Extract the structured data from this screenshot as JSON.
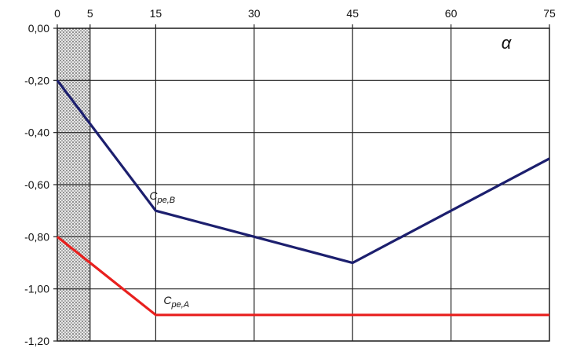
{
  "chart_data": {
    "type": "line",
    "x_ticks": [
      "0",
      "5",
      "15",
      "30",
      "45",
      "60",
      "75"
    ],
    "x_tick_values": [
      0,
      5,
      15,
      30,
      45,
      60,
      75
    ],
    "y_ticks": [
      "0,00",
      "-0,20",
      "-0,40",
      "-0,60",
      "-0,80",
      "-1,00",
      "-1,20"
    ],
    "y_tick_values": [
      0,
      -0.2,
      -0.4,
      -0.6,
      -0.8,
      -1.0,
      -1.2
    ],
    "xlim": [
      0,
      75
    ],
    "ylim": [
      -1.2,
      0
    ],
    "x_axis_position": "top",
    "grid": true,
    "shaded_region": {
      "from": 0,
      "to": 5,
      "pattern": "dotted"
    },
    "axis_symbol": "α",
    "series": [
      {
        "name": "Cpe,B",
        "label_main": "C",
        "label_sub": "pe,B",
        "color": "#1c1f6e",
        "x": [
          0,
          15,
          30,
          45,
          75
        ],
        "y": [
          -0.2,
          -0.7,
          -0.8,
          -0.9,
          -0.5
        ]
      },
      {
        "name": "Cpe,A",
        "label_main": "C",
        "label_sub": "pe,A",
        "color": "#e8201e",
        "x": [
          0,
          15,
          30,
          45,
          75
        ],
        "y": [
          -0.8,
          -1.1,
          -1.1,
          -1.1,
          -1.1
        ]
      }
    ]
  }
}
